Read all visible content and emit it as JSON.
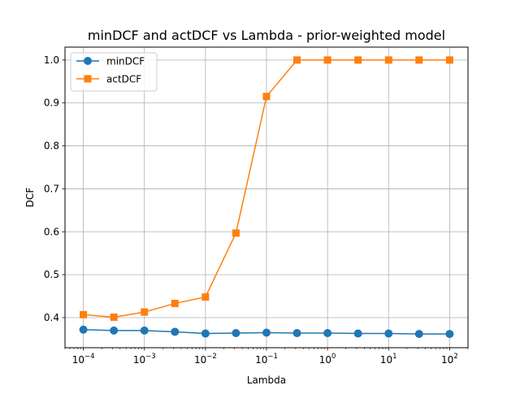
{
  "chart_data": {
    "type": "line",
    "title": "minDCF and actDCF vs Lambda - prior-weighted model",
    "xlabel": "Lambda",
    "ylabel": "DCF",
    "xscale": "log",
    "xlim": [
      5e-05,
      200
    ],
    "ylim": [
      0.33,
      1.03
    ],
    "grid": true,
    "legend_position": "top-left",
    "x": [
      0.0001,
      0.000316,
      0.001,
      0.00316,
      0.01,
      0.0316,
      0.1,
      0.316,
      1,
      3.16,
      10,
      31.6,
      100
    ],
    "x_ticks": [
      {
        "base": "10",
        "exp": "−4",
        "value": 0.0001
      },
      {
        "base": "10",
        "exp": "−3",
        "value": 0.001
      },
      {
        "base": "10",
        "exp": "−2",
        "value": 0.01
      },
      {
        "base": "10",
        "exp": "−1",
        "value": 0.1
      },
      {
        "base": "10",
        "exp": "0",
        "value": 1
      },
      {
        "base": "10",
        "exp": "1",
        "value": 10
      },
      {
        "base": "10",
        "exp": "2",
        "value": 100
      }
    ],
    "y_ticks": [
      "0.4",
      "0.5",
      "0.6",
      "0.7",
      "0.8",
      "0.9",
      "1.0"
    ],
    "series": [
      {
        "name": "minDCF",
        "color": "#1f77b4",
        "marker": "circle",
        "values": [
          0.372,
          0.37,
          0.37,
          0.367,
          0.363,
          0.364,
          0.365,
          0.364,
          0.364,
          0.363,
          0.363,
          0.362,
          0.362
        ]
      },
      {
        "name": "actDCF",
        "color": "#ff7f0e",
        "marker": "square",
        "values": [
          0.407,
          0.401,
          0.413,
          0.433,
          0.448,
          0.597,
          0.915,
          1.0,
          1.0,
          1.0,
          1.0,
          1.0,
          1.0
        ]
      }
    ]
  }
}
